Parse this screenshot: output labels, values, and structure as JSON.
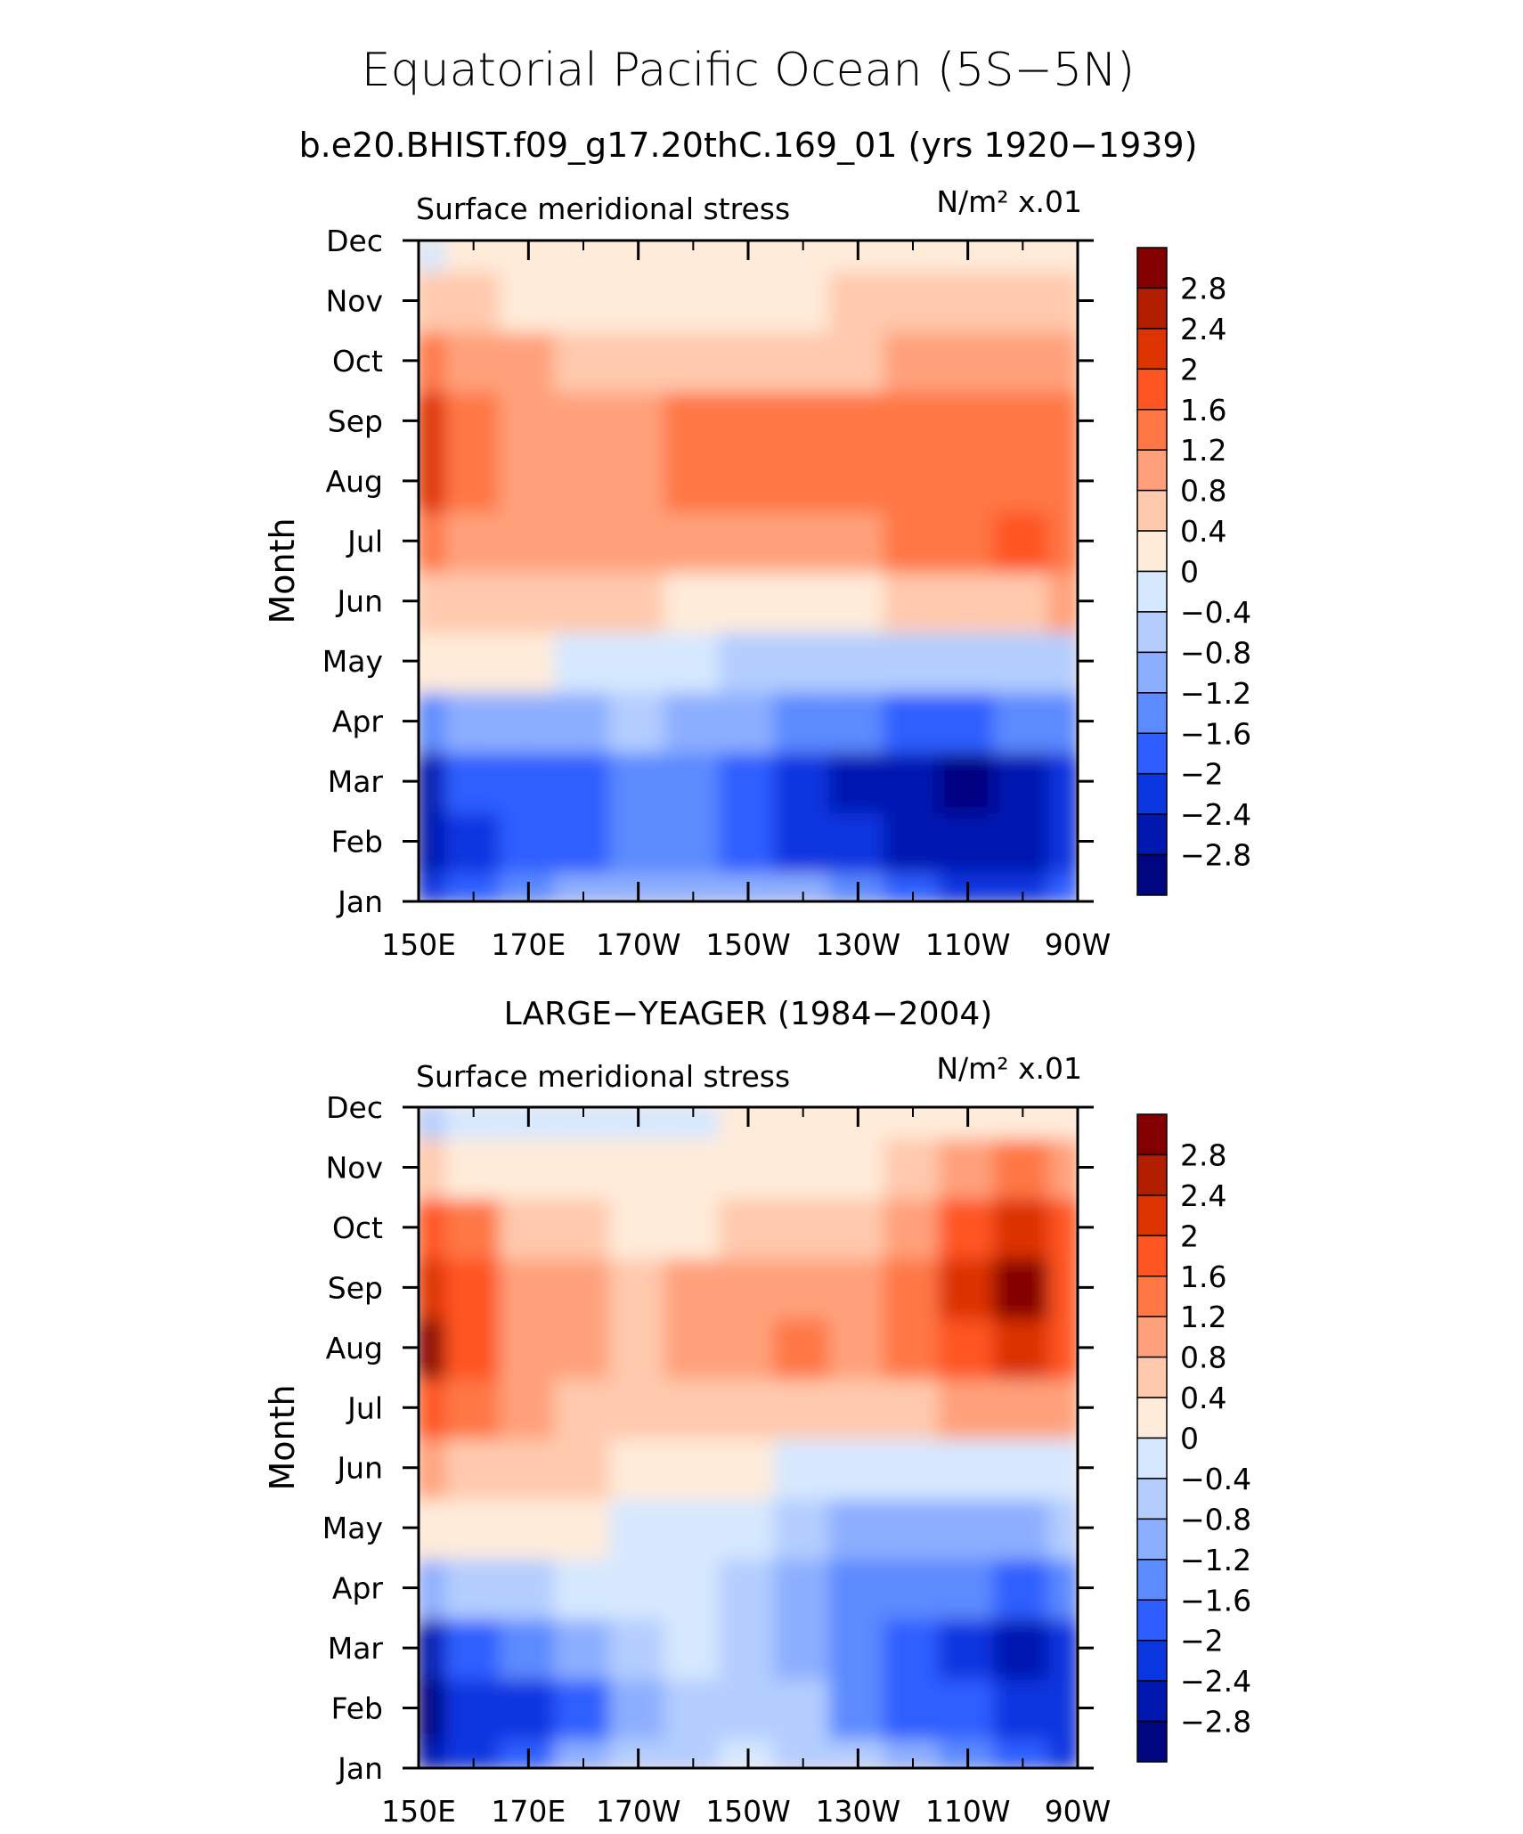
{
  "figure": {
    "title": "Equatorial Pacific Ocean (5S−5N)",
    "subtitle": "b.e20.BHIST.f09_g17.20thC.169_01 (yrs 1920−1939)"
  },
  "colorbar": {
    "labels": [
      "2.8",
      "2.4",
      "2",
      "1.6",
      "1.2",
      "0.8",
      "0.4",
      "0",
      "−0.4",
      "−0.8",
      "−1.2",
      "−1.6",
      "−2",
      "−2.4",
      "−2.8"
    ],
    "levels": [
      2.8,
      2.4,
      2.0,
      1.6,
      1.2,
      0.8,
      0.4,
      0,
      -0.4,
      -0.8,
      -1.2,
      -1.6,
      -2.0,
      -2.4,
      -2.8
    ],
    "colors": [
      "#840000",
      "#b11e00",
      "#dc3300",
      "#ff5522",
      "#ff7744",
      "#ffa07a",
      "#ffc9ad",
      "#ffebd9",
      "#d6e8ff",
      "#b3cdff",
      "#8caeff",
      "#5c8aff",
      "#2e5eff",
      "#0a36e0",
      "#0017b0",
      "#000580"
    ]
  },
  "chart_data": [
    {
      "type": "heatmap",
      "panel_title": "",
      "left_label": "Surface meridional stress",
      "units": "N/m² x.01",
      "ylabel": "Month",
      "x_ticks": [
        "150E",
        "170E",
        "170W",
        "150W",
        "130W",
        "110W",
        "90W"
      ],
      "x_values": [
        150,
        170,
        190,
        210,
        230,
        250,
        270
      ],
      "xlim": [
        150,
        270
      ],
      "y_ticks": [
        "Jan",
        "Feb",
        "Mar",
        "Apr",
        "May",
        "Jun",
        "Jul",
        "Aug",
        "Sep",
        "Oct",
        "Nov",
        "Dec"
      ],
      "columns": [
        150,
        160,
        170,
        180,
        190,
        200,
        210,
        220,
        230,
        240,
        250,
        260,
        270
      ],
      "grid": [
        [
          -2.2,
          -2.0,
          -1.4,
          -1.0,
          -1.0,
          -1.0,
          -1.0,
          -1.2,
          -1.6,
          -2.0,
          -2.2,
          -2.4,
          -2.0
        ],
        [
          -2.8,
          -2.4,
          -2.0,
          -1.9,
          -1.6,
          -1.6,
          -1.9,
          -2.2,
          -2.4,
          -2.6,
          -2.8,
          -2.8,
          -2.4
        ],
        [
          -2.5,
          -2.0,
          -1.9,
          -1.7,
          -1.6,
          -1.6,
          -1.7,
          -2.1,
          -2.5,
          -2.8,
          -3.0,
          -2.8,
          -2.2
        ],
        [
          -1.4,
          -1.2,
          -1.1,
          -1.0,
          -0.8,
          -0.9,
          -1.0,
          -1.4,
          -1.6,
          -1.8,
          -1.8,
          -1.6,
          -1.5
        ],
        [
          0.1,
          0.0,
          0.0,
          -0.1,
          -0.3,
          -0.4,
          -0.5,
          -0.6,
          -0.6,
          -0.7,
          -0.7,
          -0.6,
          -0.5
        ],
        [
          0.7,
          0.6,
          0.6,
          0.5,
          0.4,
          0.3,
          0.3,
          0.3,
          0.3,
          0.4,
          0.6,
          0.6,
          0.8
        ],
        [
          1.4,
          1.1,
          1.0,
          1.0,
          1.0,
          1.1,
          1.1,
          1.1,
          1.1,
          1.2,
          1.3,
          1.6,
          1.4
        ],
        [
          2.3,
          1.2,
          1.0,
          1.1,
          1.1,
          1.3,
          1.3,
          1.3,
          1.2,
          1.3,
          1.3,
          1.3,
          1.3
        ],
        [
          2.0,
          1.2,
          1.1,
          1.1,
          1.0,
          1.2,
          1.3,
          1.3,
          1.2,
          1.2,
          1.4,
          1.3,
          1.2
        ],
        [
          1.3,
          1.0,
          0.8,
          0.7,
          0.7,
          0.7,
          0.7,
          0.7,
          0.7,
          0.8,
          0.9,
          1.0,
          1.0
        ],
        [
          0.5,
          0.5,
          0.3,
          0.2,
          0.2,
          0.2,
          0.2,
          0.2,
          0.4,
          0.5,
          0.5,
          0.5,
          0.5
        ],
        [
          -0.1,
          0.1,
          0.2,
          0.2,
          0.2,
          0.2,
          0.2,
          0.2,
          0.3,
          0.3,
          0.3,
          0.3,
          0.2
        ]
      ]
    },
    {
      "type": "heatmap",
      "panel_title": "LARGE−YEAGER (1984−2004)",
      "left_label": "Surface meridional stress",
      "units": "N/m² x.01",
      "ylabel": "Month",
      "x_ticks": [
        "150E",
        "170E",
        "170W",
        "150W",
        "130W",
        "110W",
        "90W"
      ],
      "x_values": [
        150,
        170,
        190,
        210,
        230,
        250,
        270
      ],
      "xlim": [
        150,
        270
      ],
      "y_ticks": [
        "Jan",
        "Feb",
        "Mar",
        "Apr",
        "May",
        "Jun",
        "Jul",
        "Aug",
        "Sep",
        "Oct",
        "Nov",
        "Dec"
      ],
      "columns": [
        150,
        160,
        170,
        180,
        190,
        200,
        210,
        220,
        230,
        240,
        250,
        260,
        270
      ],
      "grid": [
        [
          -2.7,
          -2.2,
          -1.7,
          -1.2,
          -0.8,
          -0.6,
          -0.4,
          -0.5,
          -0.8,
          -1.0,
          -1.6,
          -2.0,
          -2.2
        ],
        [
          -3.0,
          -2.4,
          -2.2,
          -1.8,
          -1.0,
          -0.6,
          -0.6,
          -0.8,
          -1.3,
          -1.7,
          -2.0,
          -2.4,
          -2.4
        ],
        [
          -2.7,
          -2.0,
          -1.5,
          -1.0,
          -0.5,
          -0.4,
          -0.7,
          -1.2,
          -1.6,
          -1.8,
          -2.3,
          -2.6,
          -2.4
        ],
        [
          -1.2,
          -0.8,
          -0.6,
          -0.4,
          -0.2,
          -0.3,
          -0.6,
          -1.1,
          -1.3,
          -1.4,
          -1.6,
          -1.7,
          -1.6
        ],
        [
          0.2,
          0.1,
          0.3,
          0.1,
          -0.2,
          -0.3,
          -0.4,
          -0.7,
          -0.9,
          -0.9,
          -1.0,
          -0.9,
          -0.8
        ],
        [
          0.8,
          0.7,
          0.6,
          0.4,
          0.2,
          0.1,
          0.0,
          -0.1,
          -0.2,
          -0.3,
          -0.3,
          -0.2,
          -0.1
        ],
        [
          1.8,
          1.4,
          0.8,
          0.7,
          0.4,
          0.5,
          0.5,
          0.5,
          0.5,
          0.6,
          0.8,
          0.9,
          0.8
        ],
        [
          2.8,
          1.7,
          0.8,
          0.8,
          0.5,
          0.8,
          1.0,
          1.2,
          1.0,
          1.3,
          1.8,
          2.2,
          1.6
        ],
        [
          2.2,
          1.8,
          0.8,
          0.8,
          0.5,
          0.9,
          0.9,
          0.8,
          0.9,
          1.5,
          2.1,
          2.8,
          1.7
        ],
        [
          1.7,
          1.4,
          0.6,
          0.5,
          0.2,
          0.3,
          0.6,
          0.7,
          0.5,
          1.1,
          1.8,
          2.2,
          1.6
        ],
        [
          0.4,
          0.2,
          0.3,
          0.2,
          0.1,
          0.1,
          0.2,
          0.3,
          0.3,
          0.4,
          0.8,
          1.2,
          1.0
        ],
        [
          -0.6,
          -0.4,
          -0.4,
          -0.2,
          -0.2,
          -0.1,
          0.0,
          0.1,
          0.1,
          0.1,
          0.2,
          0.1,
          0.0
        ]
      ]
    }
  ]
}
